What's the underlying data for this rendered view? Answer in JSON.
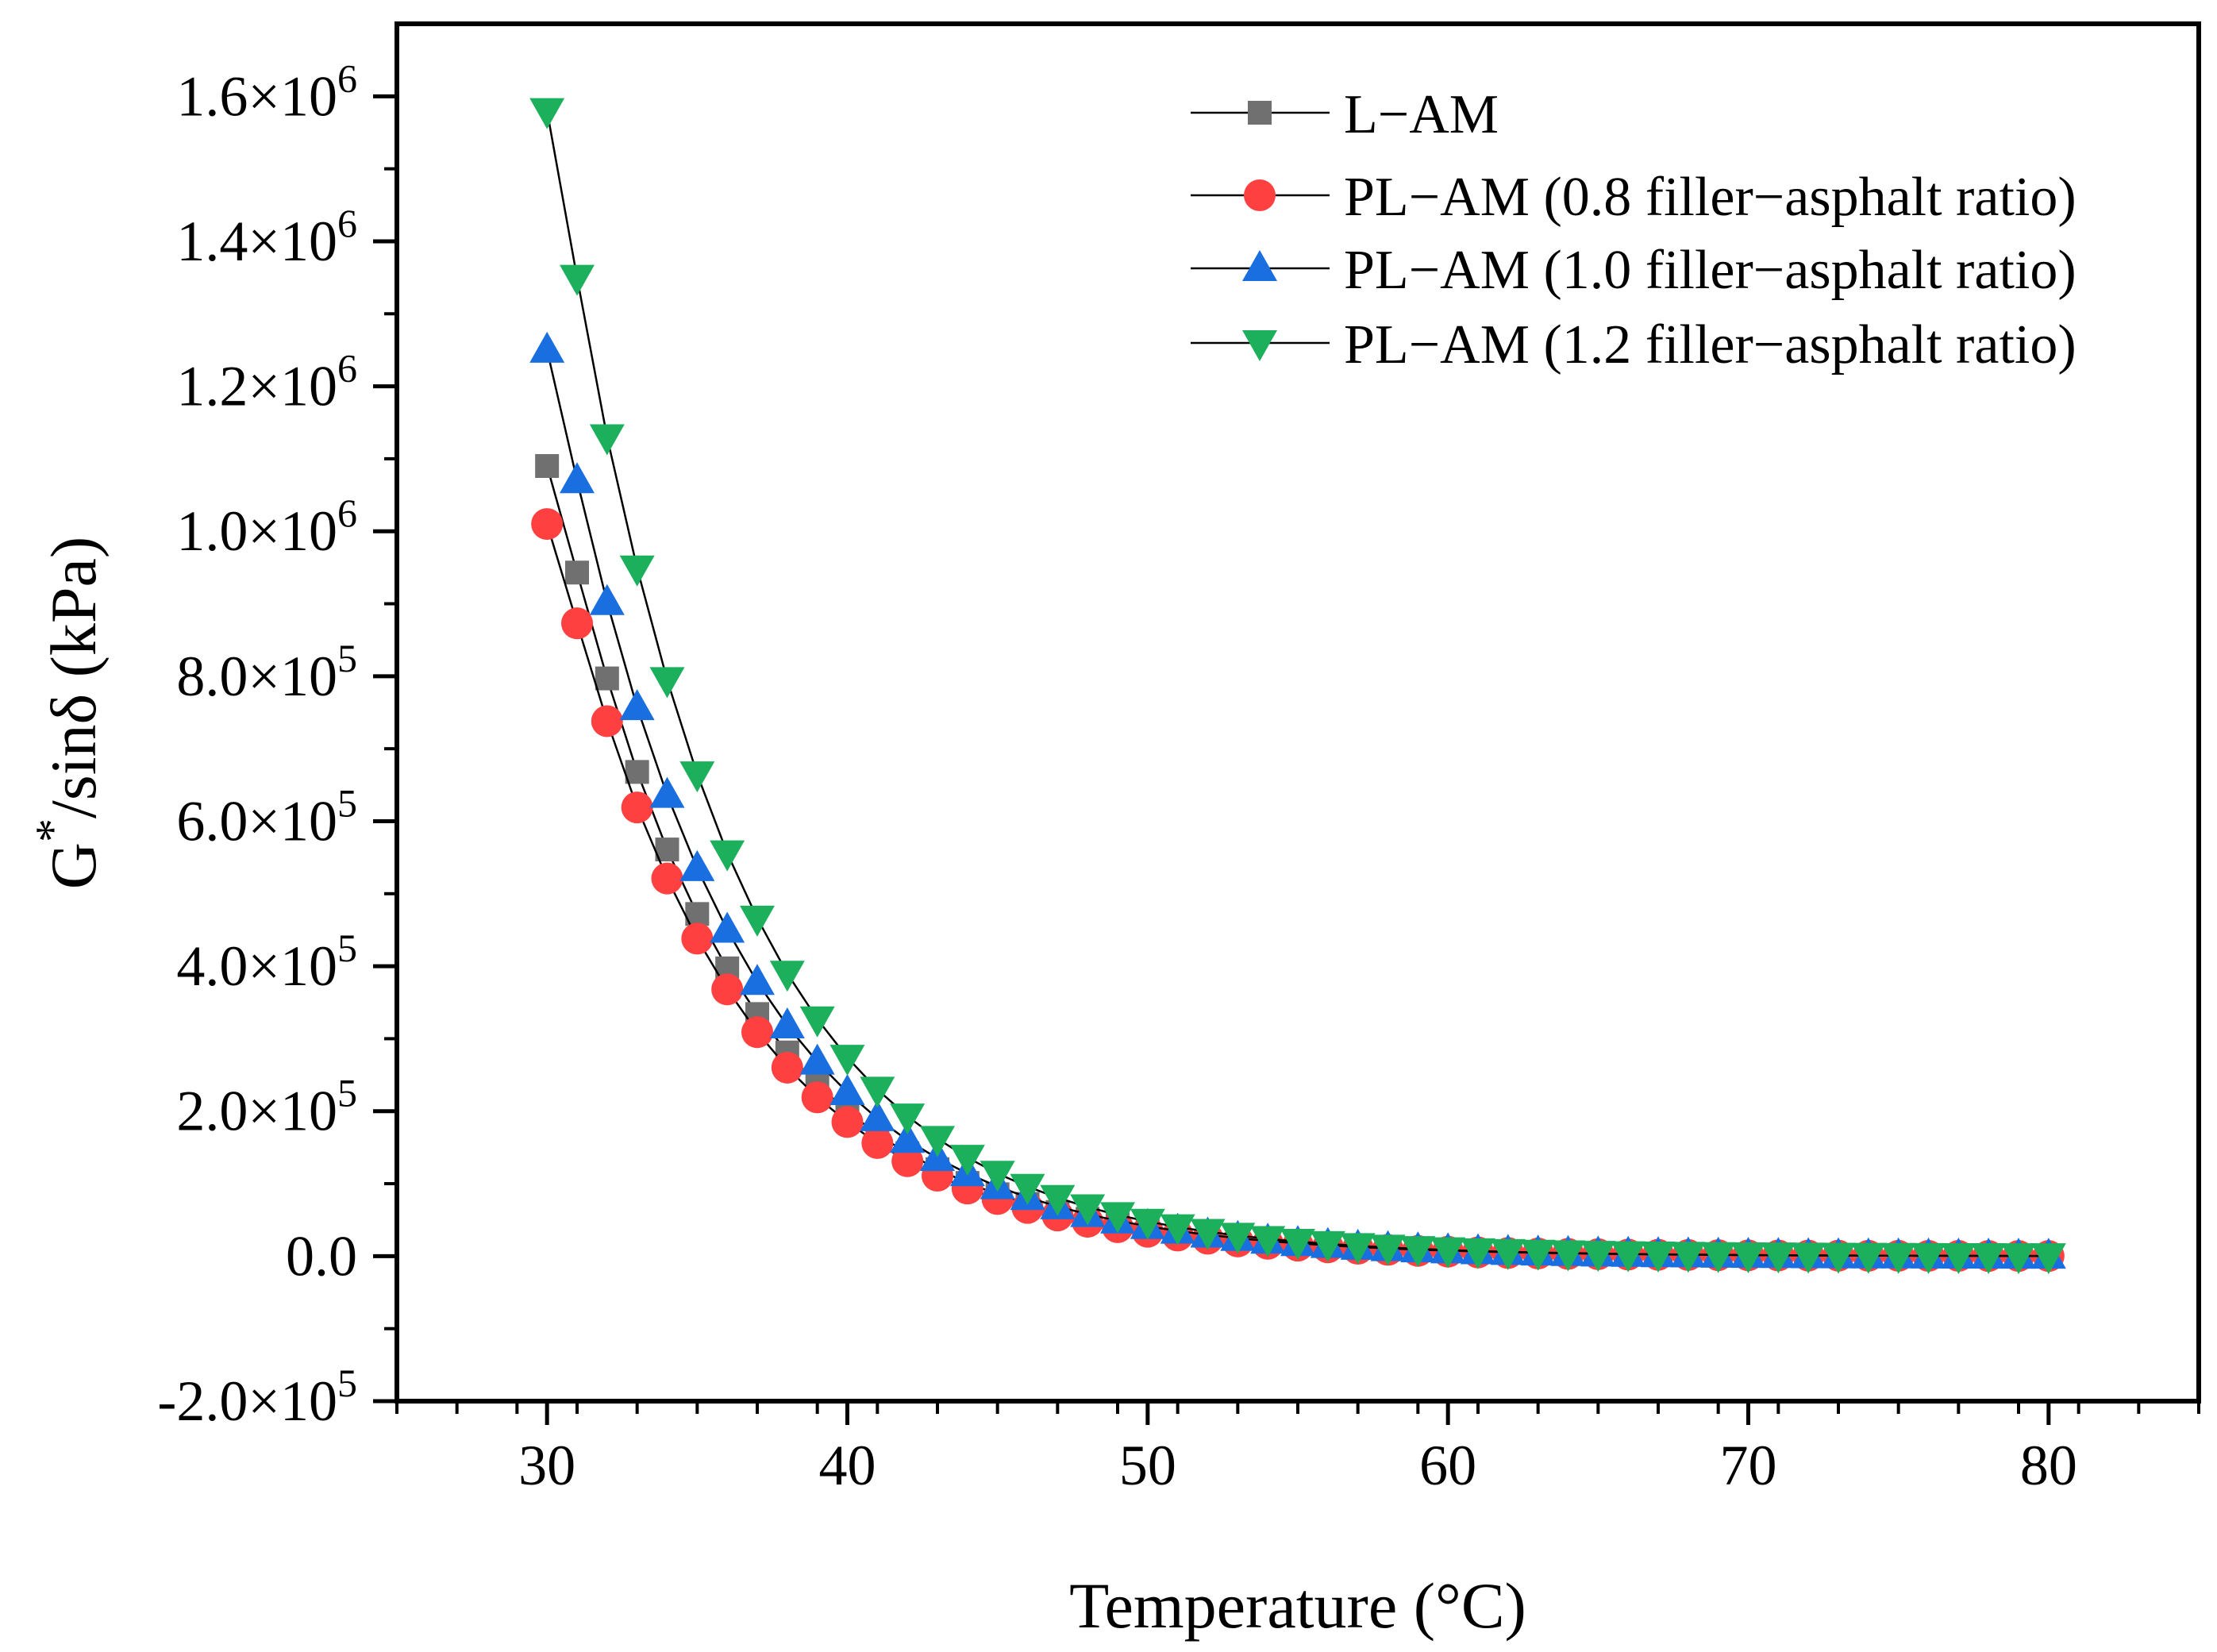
{
  "chart_data": {
    "type": "scatter",
    "title": "",
    "xlabel": "Temperature (°C)",
    "ylabel_main": "G",
    "ylabel_sup": "*",
    "ylabel_rest": "/sinδ (kPa)",
    "xlim": [
      25,
      85
    ],
    "ylim": [
      -200000,
      1700000
    ],
    "x_ticks": [
      30,
      40,
      50,
      60,
      70,
      80
    ],
    "x_tick_labels": [
      "30",
      "40",
      "50",
      "60",
      "70",
      "80"
    ],
    "y_ticks": [
      {
        "value": 1600000,
        "mantissa": "1.6×10",
        "exp": "6"
      },
      {
        "value": 1400000,
        "mantissa": "1.4×10",
        "exp": "6"
      },
      {
        "value": 1200000,
        "mantissa": "1.2×10",
        "exp": "6"
      },
      {
        "value": 1000000,
        "mantissa": "1.0×10",
        "exp": "6"
      },
      {
        "value": 800000,
        "mantissa": "8.0×10",
        "exp": "5"
      },
      {
        "value": 600000,
        "mantissa": "6.0×10",
        "exp": "5"
      },
      {
        "value": 400000,
        "mantissa": "4.0×10",
        "exp": "5"
      },
      {
        "value": 200000,
        "mantissa": "2.0×10",
        "exp": "5"
      },
      {
        "value": 0,
        "mantissa": "0.0",
        "exp": ""
      },
      {
        "value": -200000,
        "mantissa": "-2.0×10",
        "exp": "5"
      }
    ],
    "legend_position": "top-right",
    "x": [
      30,
      31,
      32,
      33,
      34,
      35,
      36,
      37,
      38,
      39,
      40,
      41,
      42,
      43,
      44,
      45,
      46,
      47,
      48,
      49,
      50,
      51,
      52,
      53,
      54,
      55,
      56,
      57,
      58,
      59,
      60,
      61,
      62,
      63,
      64,
      65,
      66,
      67,
      68,
      69,
      70,
      71,
      72,
      73,
      74,
      75,
      76,
      77,
      78,
      79,
      80
    ],
    "series": [
      {
        "name": "L−AM",
        "marker": "square",
        "color": "#707070",
        "values": [
          1090000,
          943000,
          797000,
          668000,
          561000,
          472000,
          397000,
          334000,
          281000,
          237000,
          200000,
          168000,
          142000,
          120000,
          101000,
          85400,
          72100,
          60900,
          51400,
          43400,
          36700,
          31000,
          26200,
          22100,
          18700,
          15800,
          13300,
          11300,
          9500,
          8000,
          6800,
          5700,
          4800,
          4100,
          3500,
          2900,
          2500,
          2100,
          1800,
          1500,
          1300,
          1100,
          900,
          800,
          650,
          550,
          470,
          400,
          340,
          290,
          250
        ]
      },
      {
        "name": "PL−AM (0.8 filler−asphalt ratio)",
        "marker": "circle",
        "color": "#ff4040",
        "values": [
          1010000,
          873000,
          738000,
          619000,
          521000,
          438000,
          368000,
          309000,
          260000,
          219000,
          185000,
          156000,
          131000,
          111000,
          93300,
          78800,
          66500,
          56100,
          47400,
          40000,
          33700,
          28500,
          24100,
          20300,
          17100,
          14500,
          12200,
          10300,
          8700,
          7300,
          6200,
          5200,
          4400,
          3700,
          3100,
          2700,
          2200,
          1900,
          1600,
          1350,
          1150,
          970,
          820,
          690,
          580,
          490,
          420,
          350,
          300,
          250,
          210
        ]
      },
      {
        "name": "PL−AM (1.0 filler−asphalt ratio)",
        "marker": "triangle-up",
        "color": "#1a6fe0",
        "values": [
          1250000,
          1070000,
          902000,
          757000,
          636000,
          535000,
          450000,
          378000,
          318000,
          268000,
          226000,
          190000,
          160000,
          135000,
          114000,
          96100,
          81100,
          68500,
          57800,
          48800,
          41200,
          34800,
          29400,
          24800,
          21000,
          17700,
          15000,
          12600,
          10700,
          9000,
          7600,
          6400,
          5400,
          4600,
          3900,
          3300,
          2800,
          2300,
          2000,
          1700,
          1400,
          1200,
          1000,
          850,
          720,
          610,
          510,
          430,
          370,
          310,
          260
        ]
      },
      {
        "name": "PL−AM (1.2 filler−asphalt ratio)",
        "marker": "triangle-down",
        "color": "#1db05c",
        "values": [
          1580000,
          1350000,
          1130000,
          949000,
          795000,
          665000,
          556000,
          466000,
          390000,
          327000,
          274000,
          230000,
          193000,
          162000,
          136000,
          114000,
          96000,
          80600,
          67700,
          56900,
          47800,
          40200,
          33800,
          28400,
          23900,
          20100,
          16900,
          14200,
          12000,
          10100,
          8500,
          7100,
          6000,
          5100,
          4300,
          3600,
          3000,
          2600,
          2200,
          1800,
          1500,
          1300,
          1100,
          920,
          780,
          660,
          550,
          470,
          390,
          330,
          280
        ]
      }
    ]
  }
}
